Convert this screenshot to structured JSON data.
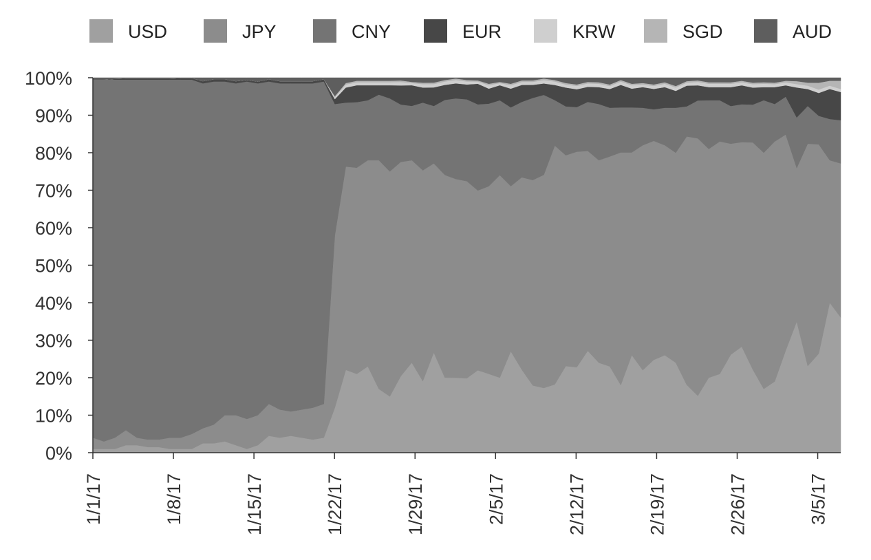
{
  "chart_data": {
    "type": "area",
    "stacked": true,
    "normalized": true,
    "title": "",
    "xlabel": "",
    "ylabel": "",
    "ylim": [
      0,
      100
    ],
    "x_tick_labels": [
      "1/1/17",
      "1/8/17",
      "1/15/17",
      "1/22/17",
      "1/29/17",
      "2/5/17",
      "2/12/17",
      "2/19/17",
      "2/26/17",
      "3/5/17"
    ],
    "y_tick_labels": [
      "0%",
      "10%",
      "20%",
      "30%",
      "40%",
      "50%",
      "60%",
      "70%",
      "80%",
      "90%",
      "100%"
    ],
    "x_start": "2017-01-01",
    "x_end": "2017-03-07",
    "legend_position": "top",
    "grid": false,
    "series": [
      {
        "name": "USD",
        "color": "#a0a0a0",
        "values": [
          1,
          1,
          1,
          2,
          2,
          1.5,
          1.5,
          1,
          1,
          1,
          2.5,
          2.5,
          3,
          2,
          1,
          2,
          4.5,
          4,
          4.5,
          4,
          3.5,
          4,
          12,
          22,
          21,
          23,
          17,
          15,
          20,
          24,
          19,
          27,
          20,
          20,
          20,
          22,
          21,
          20,
          27,
          22,
          18,
          17,
          18,
          23,
          23,
          27,
          24,
          23,
          18,
          26,
          22,
          25,
          26,
          24,
          18,
          15,
          20,
          21,
          26,
          28,
          22,
          17,
          19,
          27,
          35,
          23,
          26,
          40,
          36
        ]
      },
      {
        "name": "JPY",
        "color": "#8c8c8c",
        "values": [
          3,
          2,
          3,
          4,
          2,
          2,
          2,
          3,
          3,
          4,
          4,
          5,
          7,
          8,
          8,
          8,
          8.5,
          7.5,
          6.5,
          7.5,
          8.5,
          9,
          46,
          54,
          55,
          55,
          61,
          60,
          56,
          54,
          56,
          51,
          54,
          53,
          53,
          48,
          50,
          54,
          44,
          51,
          55,
          56,
          63,
          56,
          58,
          53,
          54,
          56,
          62,
          54,
          60,
          59,
          56,
          56,
          66,
          68,
          61,
          62,
          56,
          54,
          60,
          63,
          64,
          57,
          41,
          59,
          55,
          38,
          41
        ]
      },
      {
        "name": "CNY",
        "color": "#747474",
        "values": [
          95.5,
          96.5,
          95.5,
          93.5,
          95.5,
          96,
          96,
          95.5,
          95.5,
          94.5,
          92,
          91.5,
          89,
          88.5,
          90,
          88.5,
          86,
          87,
          87.5,
          87,
          86.5,
          86,
          35,
          17,
          17.5,
          16,
          17.5,
          19.5,
          15,
          14.5,
          18,
          15.5,
          20,
          21.5,
          22,
          23,
          22,
          20,
          21,
          20,
          22,
          21,
          12,
          13,
          12,
          13,
          15,
          13,
          12,
          12,
          10,
          8.5,
          10,
          12,
          8,
          10,
          13,
          11,
          10,
          10,
          10,
          14,
          10,
          10,
          13.5,
          10,
          7.5,
          11,
          11.5
        ]
      },
      {
        "name": "EUR",
        "color": "#474747",
        "values": [
          0,
          0,
          0.2,
          0.3,
          0.3,
          0.3,
          0.3,
          0.3,
          0.4,
          0.4,
          0.6,
          0.6,
          0.6,
          0.6,
          0.4,
          0.5,
          0.6,
          0.6,
          0.6,
          0.6,
          0.6,
          0.6,
          1.3,
          4,
          4.5,
          4,
          2.5,
          3.5,
          5,
          5.5,
          4,
          5,
          4,
          4,
          4,
          5.5,
          4,
          4,
          5,
          4.5,
          3.5,
          3,
          4,
          5,
          4.8,
          4,
          4.5,
          5,
          6,
          5,
          5.5,
          5.5,
          5.5,
          4.5,
          5.5,
          4,
          3.5,
          3.5,
          5,
          5,
          4.5,
          3.5,
          4.5,
          3,
          8,
          4.5,
          6,
          8,
          7.5
        ]
      },
      {
        "name": "KRW",
        "color": "#cfcfcf",
        "values": [
          0,
          0,
          0,
          0,
          0,
          0,
          0,
          0,
          0,
          0,
          0,
          0,
          0,
          0,
          0,
          0,
          0,
          0,
          0,
          0,
          0,
          0,
          0.5,
          0.8,
          0.8,
          0.8,
          0.8,
          0.8,
          0.9,
          0.6,
          0.9,
          0.9,
          0.9,
          0.9,
          0.8,
          0.6,
          0.9,
          0.6,
          0.9,
          0.8,
          0.8,
          0.9,
          0.9,
          0.8,
          0.9,
          0.9,
          0.9,
          0.8,
          0.9,
          0.9,
          0.7,
          0.8,
          0.9,
          0.9,
          0.8,
          0.9,
          0.9,
          0.9,
          0.9,
          0.8,
          0.9,
          0.9,
          0.8,
          0.8,
          0.9,
          0.9,
          0.9,
          0.9,
          0.8
        ]
      },
      {
        "name": "SGD",
        "color": "#b5b5b5",
        "values": [
          0,
          0,
          0,
          0,
          0,
          0,
          0,
          0,
          0,
          0,
          0,
          0,
          0,
          0,
          0,
          0,
          0,
          0,
          0,
          0,
          0,
          0,
          0.3,
          0.4,
          0.4,
          0.4,
          0.4,
          0.4,
          0.4,
          0.3,
          0.4,
          0.4,
          0.4,
          0.4,
          0.4,
          0.3,
          0.4,
          0.3,
          0.4,
          0.4,
          0.4,
          0.4,
          0.4,
          0.4,
          0.4,
          0.4,
          0.4,
          0.4,
          0.4,
          0.4,
          0.4,
          0.4,
          0.4,
          0.4,
          0.4,
          0.4,
          0.4,
          0.4,
          0.4,
          0.4,
          0.4,
          0.4,
          0.4,
          0.4,
          0.8,
          0.8,
          1.8,
          1.3,
          2.2
        ]
      },
      {
        "name": "AUD",
        "color": "#5e5e5e",
        "values": [
          0.5,
          0.5,
          0.3,
          0.2,
          0.2,
          0.2,
          0.2,
          0.2,
          0.1,
          0.1,
          0.9,
          0.4,
          0.4,
          0.9,
          0.6,
          1,
          0.4,
          0.9,
          0.9,
          0.9,
          0.9,
          0.4,
          4.9,
          1.4,
          0.8,
          0.8,
          0.8,
          0.8,
          0.7,
          1.1,
          1.3,
          1.3,
          0.6,
          0.2,
          0.6,
          0.7,
          1.6,
          1.1,
          1.6,
          0.7,
          0.7,
          0.2,
          0.6,
          1.4,
          1.8,
          1.1,
          1.2,
          1.8,
          0.6,
          1.6,
          1.4,
          1.8,
          1.2,
          2.2,
          0.9,
          0.7,
          1.2,
          1.2,
          1.2,
          0.8,
          1.3,
          1.2,
          1.3,
          0.8,
          0.9,
          1.3,
          1.3,
          0.8,
          0.8
        ]
      }
    ]
  }
}
